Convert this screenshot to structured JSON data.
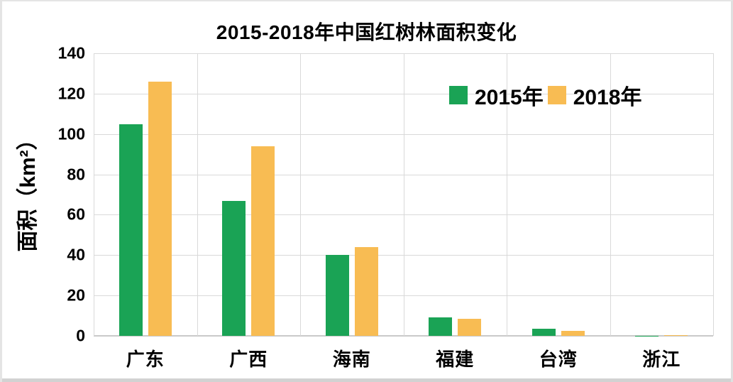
{
  "chart": {
    "title": "2015-2018年中国红树林面积变化",
    "y_axis_title": "面积（km²）"
  },
  "chart_data": {
    "type": "bar",
    "title": "2015-2018年中国红树林面积变化",
    "categories": [
      "广东",
      "广西",
      "海南",
      "福建",
      "台湾",
      "浙江"
    ],
    "series": [
      {
        "name": "2015年",
        "color": "#1aa355",
        "values": [
          105,
          67,
          40,
          9,
          3.4,
          0.1
        ]
      },
      {
        "name": "2018年",
        "color": "#f8bc53",
        "values": [
          126,
          94,
          44,
          8.3,
          2.4,
          0.5
        ]
      }
    ],
    "xlabel": "",
    "ylabel": "面积（km²）",
    "ylim": [
      0,
      140
    ],
    "ytick_step": 20,
    "yticks": [
      0,
      20,
      40,
      60,
      80,
      100,
      120,
      140
    ],
    "grid": true,
    "legend_position": "upper-right-inside",
    "colors": {
      "series_2015": "#1aa355",
      "series_2018": "#f8bc53",
      "gridline": "#d9d9d9",
      "axis_line": "#c9c9c9",
      "text": "#000000",
      "background": "#ffffff",
      "bottom_strip": "#d2d2d2"
    }
  }
}
